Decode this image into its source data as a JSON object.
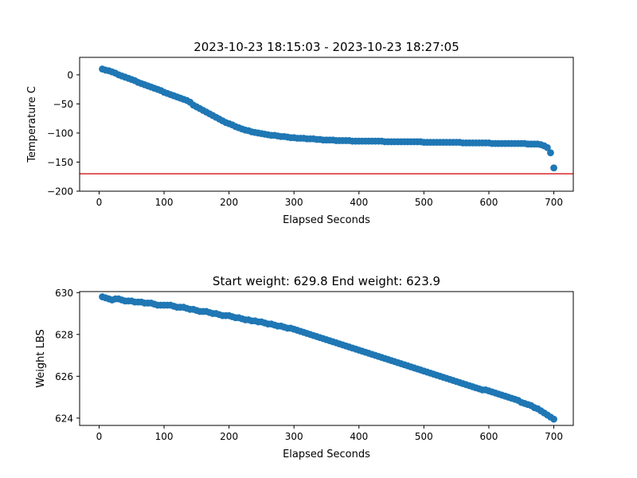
{
  "chart_data": [
    {
      "type": "scatter",
      "title": "2023-10-23 18:15:03 - 2023-10-23 18:27:05",
      "xlabel": "Elapsed Seconds",
      "ylabel": "Temperature C",
      "xlim": [
        -30,
        730
      ],
      "ylim": [
        -200,
        30
      ],
      "xticks": [
        0,
        100,
        200,
        300,
        400,
        500,
        600,
        700
      ],
      "yticks": [
        0,
        -50,
        -100,
        -150,
        -200
      ],
      "grid": false,
      "marker_color": "#1f77b4",
      "hline": {
        "y": -170,
        "color": "#d62728"
      },
      "points": [
        [
          5,
          10
        ],
        [
          10,
          8
        ],
        [
          15,
          7
        ],
        [
          20,
          5
        ],
        [
          25,
          3
        ],
        [
          30,
          0
        ],
        [
          35,
          -2
        ],
        [
          40,
          -4
        ],
        [
          45,
          -6
        ],
        [
          50,
          -8
        ],
        [
          55,
          -10
        ],
        [
          60,
          -13
        ],
        [
          65,
          -15
        ],
        [
          70,
          -17
        ],
        [
          75,
          -19
        ],
        [
          80,
          -21
        ],
        [
          85,
          -23
        ],
        [
          90,
          -25
        ],
        [
          95,
          -27
        ],
        [
          100,
          -30
        ],
        [
          105,
          -32
        ],
        [
          110,
          -34
        ],
        [
          115,
          -36
        ],
        [
          120,
          -38
        ],
        [
          125,
          -40
        ],
        [
          130,
          -42
        ],
        [
          135,
          -44
        ],
        [
          140,
          -47
        ],
        [
          145,
          -52
        ],
        [
          150,
          -55
        ],
        [
          155,
          -58
        ],
        [
          160,
          -61
        ],
        [
          165,
          -64
        ],
        [
          170,
          -67
        ],
        [
          175,
          -70
        ],
        [
          180,
          -73
        ],
        [
          185,
          -76
        ],
        [
          190,
          -79
        ],
        [
          195,
          -82
        ],
        [
          200,
          -84
        ],
        [
          205,
          -86
        ],
        [
          210,
          -89
        ],
        [
          215,
          -91
        ],
        [
          220,
          -93
        ],
        [
          225,
          -95
        ],
        [
          230,
          -96
        ],
        [
          235,
          -98
        ],
        [
          240,
          -99
        ],
        [
          245,
          -100
        ],
        [
          250,
          -101
        ],
        [
          255,
          -102
        ],
        [
          260,
          -103
        ],
        [
          265,
          -104
        ],
        [
          270,
          -104
        ],
        [
          275,
          -105
        ],
        [
          280,
          -106
        ],
        [
          285,
          -106
        ],
        [
          290,
          -107
        ],
        [
          295,
          -108
        ],
        [
          300,
          -108
        ],
        [
          305,
          -109
        ],
        [
          310,
          -109
        ],
        [
          315,
          -109
        ],
        [
          320,
          -110
        ],
        [
          325,
          -110
        ],
        [
          330,
          -110
        ],
        [
          335,
          -111
        ],
        [
          340,
          -111
        ],
        [
          345,
          -112
        ],
        [
          350,
          -112
        ],
        [
          355,
          -112
        ],
        [
          360,
          -112
        ],
        [
          365,
          -113
        ],
        [
          370,
          -113
        ],
        [
          375,
          -113
        ],
        [
          380,
          -113
        ],
        [
          385,
          -113
        ],
        [
          390,
          -114
        ],
        [
          395,
          -114
        ],
        [
          400,
          -114
        ],
        [
          405,
          -114
        ],
        [
          410,
          -114
        ],
        [
          415,
          -114
        ],
        [
          420,
          -114
        ],
        [
          425,
          -114
        ],
        [
          430,
          -114
        ],
        [
          435,
          -114
        ],
        [
          440,
          -115
        ],
        [
          445,
          -115
        ],
        [
          450,
          -115
        ],
        [
          455,
          -115
        ],
        [
          460,
          -115
        ],
        [
          465,
          -115
        ],
        [
          470,
          -115
        ],
        [
          475,
          -115
        ],
        [
          480,
          -115
        ],
        [
          485,
          -115
        ],
        [
          490,
          -115
        ],
        [
          495,
          -115
        ],
        [
          500,
          -116
        ],
        [
          505,
          -116
        ],
        [
          510,
          -116
        ],
        [
          515,
          -116
        ],
        [
          520,
          -116
        ],
        [
          525,
          -116
        ],
        [
          530,
          -116
        ],
        [
          535,
          -116
        ],
        [
          540,
          -116
        ],
        [
          545,
          -116
        ],
        [
          550,
          -116
        ],
        [
          555,
          -116
        ],
        [
          560,
          -117
        ],
        [
          565,
          -117
        ],
        [
          570,
          -117
        ],
        [
          575,
          -117
        ],
        [
          580,
          -117
        ],
        [
          585,
          -117
        ],
        [
          590,
          -117
        ],
        [
          595,
          -117
        ],
        [
          600,
          -117
        ],
        [
          605,
          -118
        ],
        [
          610,
          -118
        ],
        [
          615,
          -118
        ],
        [
          620,
          -118
        ],
        [
          625,
          -118
        ],
        [
          630,
          -118
        ],
        [
          635,
          -118
        ],
        [
          640,
          -118
        ],
        [
          645,
          -118
        ],
        [
          650,
          -118
        ],
        [
          655,
          -118
        ],
        [
          660,
          -119
        ],
        [
          665,
          -119
        ],
        [
          670,
          -119
        ],
        [
          675,
          -119
        ],
        [
          680,
          -120
        ],
        [
          685,
          -122
        ],
        [
          690,
          -125
        ],
        [
          695,
          -134
        ],
        [
          700,
          -160
        ]
      ]
    },
    {
      "type": "scatter",
      "title": "Start weight: 629.8 End weight: 623.9",
      "xlabel": "Elapsed Seconds",
      "ylabel": "Weight LBS",
      "xlim": [
        -30,
        730
      ],
      "ylim": [
        623.65,
        630.05
      ],
      "xticks": [
        0,
        100,
        200,
        300,
        400,
        500,
        600,
        700
      ],
      "yticks": [
        624,
        626,
        628,
        630
      ],
      "grid": false,
      "marker_color": "#1f77b4",
      "points": [
        [
          5,
          629.8
        ],
        [
          10,
          629.75
        ],
        [
          15,
          629.7
        ],
        [
          20,
          629.65
        ],
        [
          25,
          629.7
        ],
        [
          30,
          629.7
        ],
        [
          35,
          629.65
        ],
        [
          40,
          629.6
        ],
        [
          45,
          629.6
        ],
        [
          50,
          629.6
        ],
        [
          55,
          629.55
        ],
        [
          60,
          629.55
        ],
        [
          65,
          629.55
        ],
        [
          70,
          629.5
        ],
        [
          75,
          629.5
        ],
        [
          80,
          629.5
        ],
        [
          85,
          629.45
        ],
        [
          90,
          629.4
        ],
        [
          95,
          629.4
        ],
        [
          100,
          629.4
        ],
        [
          105,
          629.4
        ],
        [
          110,
          629.4
        ],
        [
          115,
          629.35
        ],
        [
          120,
          629.3
        ],
        [
          125,
          629.3
        ],
        [
          130,
          629.3
        ],
        [
          135,
          629.25
        ],
        [
          140,
          629.2
        ],
        [
          145,
          629.2
        ],
        [
          150,
          629.15
        ],
        [
          155,
          629.1
        ],
        [
          160,
          629.1
        ],
        [
          165,
          629.1
        ],
        [
          170,
          629.05
        ],
        [
          175,
          629
        ],
        [
          180,
          629
        ],
        [
          185,
          628.95
        ],
        [
          190,
          628.9
        ],
        [
          195,
          628.9
        ],
        [
          200,
          628.9
        ],
        [
          205,
          628.85
        ],
        [
          210,
          628.8
        ],
        [
          215,
          628.8
        ],
        [
          220,
          628.75
        ],
        [
          225,
          628.7
        ],
        [
          230,
          628.7
        ],
        [
          235,
          628.65
        ],
        [
          240,
          628.65
        ],
        [
          245,
          628.6
        ],
        [
          250,
          628.6
        ],
        [
          255,
          628.55
        ],
        [
          260,
          628.5
        ],
        [
          265,
          628.5
        ],
        [
          270,
          628.45
        ],
        [
          275,
          628.4
        ],
        [
          280,
          628.4
        ],
        [
          285,
          628.35
        ],
        [
          290,
          628.3
        ],
        [
          295,
          628.3
        ],
        [
          300,
          628.25
        ],
        [
          305,
          628.2
        ],
        [
          310,
          628.15
        ],
        [
          315,
          628.1
        ],
        [
          320,
          628.05
        ],
        [
          325,
          628
        ],
        [
          330,
          627.95
        ],
        [
          335,
          627.9
        ],
        [
          340,
          627.85
        ],
        [
          345,
          627.8
        ],
        [
          350,
          627.75
        ],
        [
          355,
          627.7
        ],
        [
          360,
          627.65
        ],
        [
          365,
          627.6
        ],
        [
          370,
          627.55
        ],
        [
          375,
          627.5
        ],
        [
          380,
          627.45
        ],
        [
          385,
          627.4
        ],
        [
          390,
          627.35
        ],
        [
          395,
          627.3
        ],
        [
          400,
          627.25
        ],
        [
          405,
          627.2
        ],
        [
          410,
          627.15
        ],
        [
          415,
          627.1
        ],
        [
          420,
          627.05
        ],
        [
          425,
          627
        ],
        [
          430,
          626.95
        ],
        [
          435,
          626.9
        ],
        [
          440,
          626.85
        ],
        [
          445,
          626.8
        ],
        [
          450,
          626.75
        ],
        [
          455,
          626.7
        ],
        [
          460,
          626.65
        ],
        [
          465,
          626.6
        ],
        [
          470,
          626.55
        ],
        [
          475,
          626.5
        ],
        [
          480,
          626.45
        ],
        [
          485,
          626.4
        ],
        [
          490,
          626.35
        ],
        [
          495,
          626.3
        ],
        [
          500,
          626.25
        ],
        [
          505,
          626.2
        ],
        [
          510,
          626.15
        ],
        [
          515,
          626.1
        ],
        [
          520,
          626.05
        ],
        [
          525,
          626
        ],
        [
          530,
          625.95
        ],
        [
          535,
          625.9
        ],
        [
          540,
          625.85
        ],
        [
          545,
          625.8
        ],
        [
          550,
          625.75
        ],
        [
          555,
          625.7
        ],
        [
          560,
          625.65
        ],
        [
          565,
          625.6
        ],
        [
          570,
          625.55
        ],
        [
          575,
          625.5
        ],
        [
          580,
          625.45
        ],
        [
          585,
          625.4
        ],
        [
          590,
          625.35
        ],
        [
          595,
          625.35
        ],
        [
          600,
          625.3
        ],
        [
          605,
          625.25
        ],
        [
          610,
          625.2
        ],
        [
          615,
          625.15
        ],
        [
          620,
          625.1
        ],
        [
          625,
          625.05
        ],
        [
          630,
          625
        ],
        [
          635,
          624.95
        ],
        [
          640,
          624.9
        ],
        [
          645,
          624.85
        ],
        [
          650,
          624.75
        ],
        [
          655,
          624.7
        ],
        [
          660,
          624.65
        ],
        [
          665,
          624.6
        ],
        [
          670,
          624.5
        ],
        [
          675,
          624.45
        ],
        [
          680,
          624.35
        ],
        [
          685,
          624.25
        ],
        [
          690,
          624.15
        ],
        [
          695,
          624.05
        ],
        [
          700,
          623.95
        ]
      ]
    }
  ]
}
